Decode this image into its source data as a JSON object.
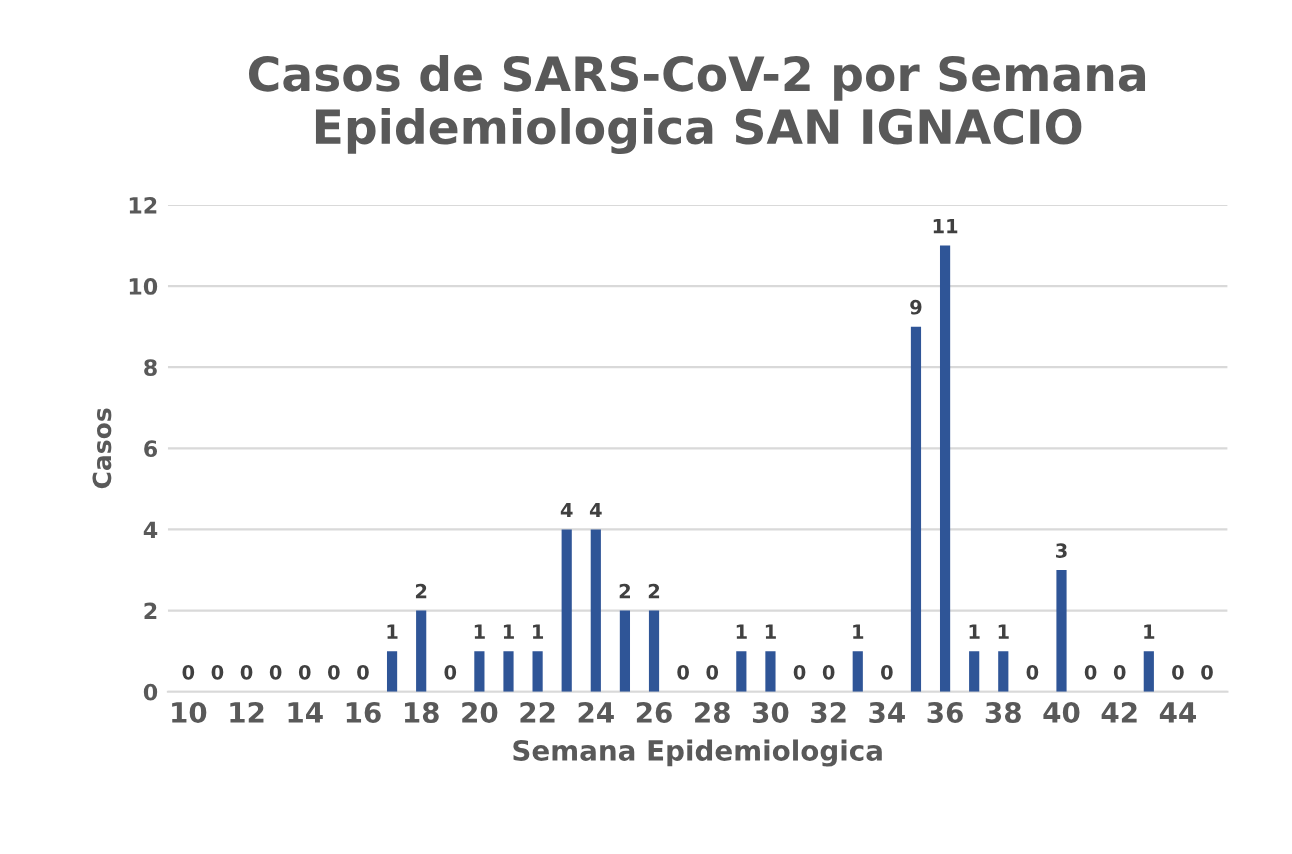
{
  "chart_data": {
    "type": "bar",
    "title": "Casos de SARS-CoV-2 por Semana\nEpidemiologica SAN IGNACIO",
    "xlabel": "Semana Epidemiologica",
    "ylabel": "Casos",
    "categories": [
      "10",
      null,
      "12",
      null,
      "14",
      null,
      "16",
      null,
      "18",
      null,
      "20",
      null,
      "22",
      null,
      "24",
      null,
      "26",
      null,
      "28",
      null,
      "30",
      null,
      "32",
      null,
      "34",
      null,
      "36",
      null,
      "38",
      null,
      "40",
      null,
      "42",
      null,
      "44",
      null
    ],
    "values": [
      0,
      0,
      0,
      0,
      0,
      0,
      0,
      1,
      2,
      0,
      1,
      1,
      1,
      4,
      4,
      2,
      2,
      0,
      0,
      1,
      1,
      0,
      0,
      1,
      0,
      9,
      11,
      1,
      1,
      0,
      3,
      0,
      0,
      1,
      0,
      0
    ],
    "color": "#2f5597",
    "ylim": [
      0,
      12
    ],
    "yticks": [
      0,
      2,
      4,
      6,
      8,
      10,
      12
    ],
    "grid": "y",
    "data_labels": true
  }
}
